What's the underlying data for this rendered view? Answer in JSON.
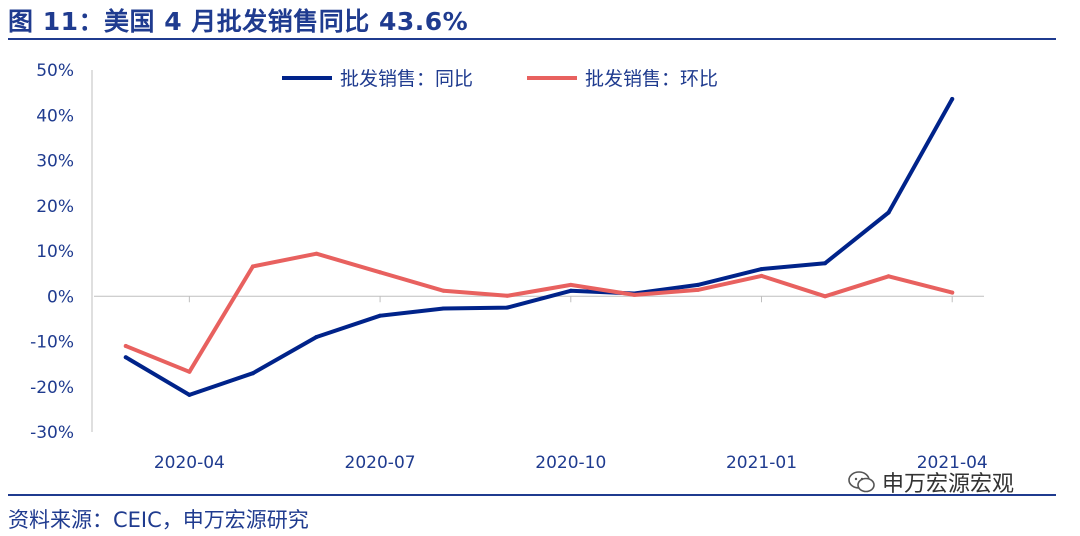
{
  "header": {
    "title": "图 11：美国 4 月批发销售同比 43.6%"
  },
  "footer": {
    "source": "资料来源：CEIC，申万宏源研究",
    "watermark": "申万宏源宏观"
  },
  "colors": {
    "yoy": "#00238a",
    "mom": "#e8615f",
    "axis": "#1f3b8f",
    "title": "#1f3b8f"
  },
  "chart_data": {
    "type": "line",
    "x": [
      "2020-03",
      "2020-04",
      "2020-05",
      "2020-06",
      "2020-07",
      "2020-08",
      "2020-09",
      "2020-10",
      "2020-11",
      "2020-12",
      "2021-01",
      "2021-02",
      "2021-03",
      "2021-04"
    ],
    "x_tick_labels": [
      "2020-04",
      "2020-07",
      "2020-10",
      "2021-01",
      "2021-04"
    ],
    "y_tick_labels": [
      "50%",
      "40%",
      "30%",
      "20%",
      "10%",
      "0%",
      "-10%",
      "-20%",
      "-30%"
    ],
    "ylim": [
      -30,
      50
    ],
    "y_unit": "%",
    "legend": {
      "position": "top",
      "entries": [
        "批发销售：同比",
        "批发销售：环比"
      ]
    },
    "series": [
      {
        "name": "批发销售：同比",
        "values": [
          -13.5,
          -21.8,
          -17.0,
          -9.0,
          -4.3,
          -2.7,
          -2.5,
          1.2,
          0.6,
          2.5,
          6.0,
          7.3,
          18.5,
          43.6
        ]
      },
      {
        "name": "批发销售：环比",
        "values": [
          -11.0,
          -16.7,
          6.6,
          9.4,
          5.3,
          1.2,
          0.1,
          2.5,
          0.3,
          1.4,
          4.5,
          0.0,
          4.4,
          0.8
        ]
      }
    ],
    "grid": false
  }
}
